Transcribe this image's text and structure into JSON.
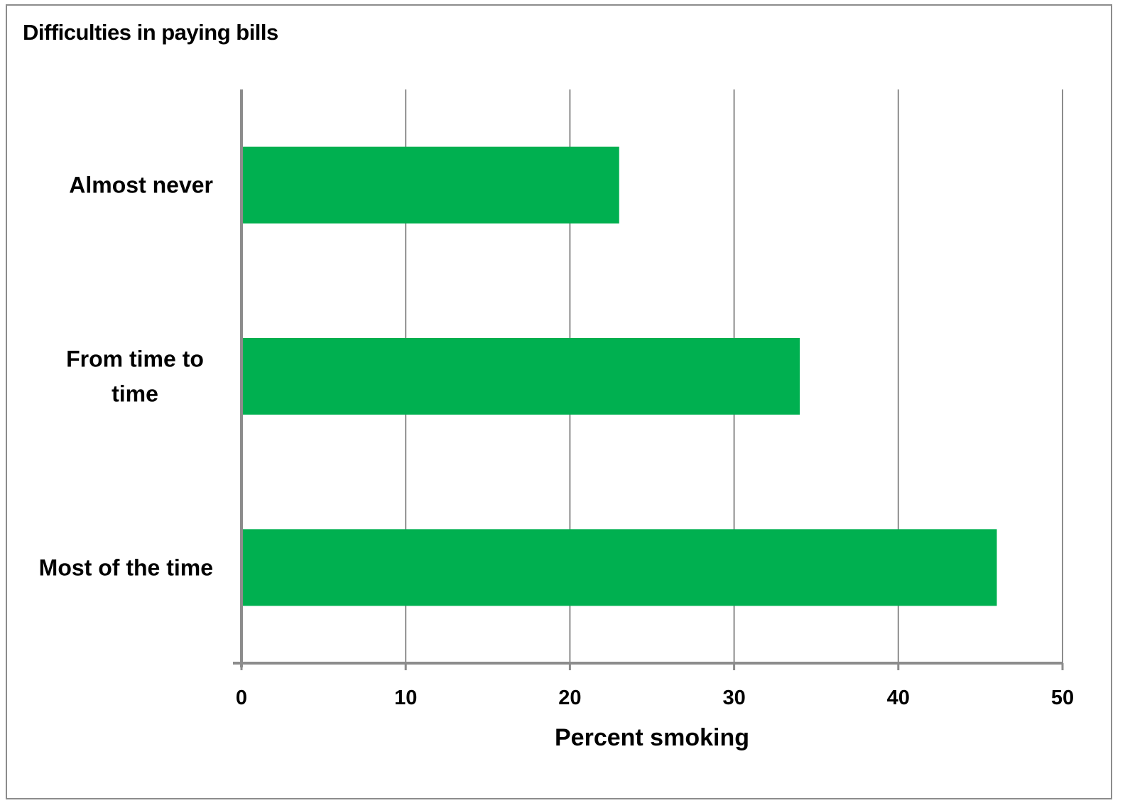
{
  "chart_data": {
    "type": "bar",
    "orientation": "horizontal",
    "title": "Difficulties in paying bills",
    "xlabel": "Percent smoking",
    "ylabel": "",
    "categories": [
      [
        "Almost never"
      ],
      [
        "From time to",
        "time"
      ],
      [
        "Most of the time"
      ]
    ],
    "values": [
      23,
      34,
      46
    ],
    "xlim": [
      0,
      50
    ],
    "xticks": [
      "0",
      "10",
      "20",
      "30",
      "40",
      "50"
    ],
    "grid": true,
    "legend": "none",
    "bar_color": "#00b050",
    "grid_color": "#8c8c8c"
  }
}
